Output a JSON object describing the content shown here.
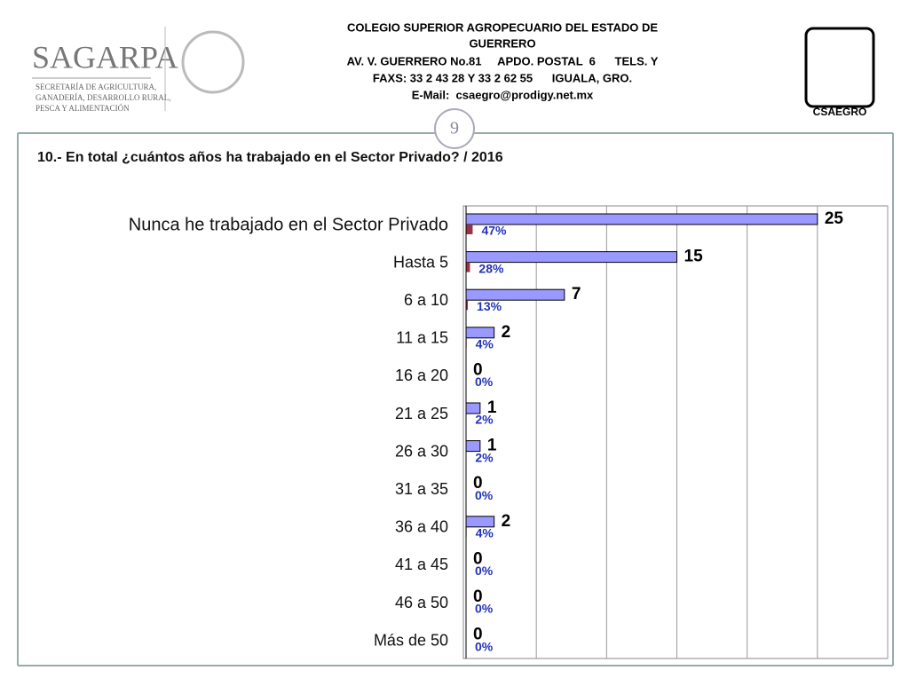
{
  "header": {
    "lines": [
      "COLEGIO SUPERIOR AGROPECUARIO DEL ESTADO DE",
      "GUERRERO",
      "AV. V. GUERRERO No.81     APDO. POSTAL  6      TELS. Y",
      "FAXS: 33 2 43 28 Y 33 2 62 55      IGUALA, GRO.",
      "E-Mail:  csaegro@prodigy.net.mx"
    ],
    "logo_left": {
      "name": "SAGARPA",
      "lines": [
        "SECRETARÍA DE AGRICULTURA,",
        "GANADERÍA, DESARROLLO RURAL,",
        "PESCA Y ALIMENTACIÓN"
      ]
    },
    "logo_right": "CSAEGRO",
    "page_number": "9"
  },
  "question": "10.- En total ¿cuántos años ha trabajado en el Sector Privado?   /   2016",
  "chart_data": {
    "type": "bar",
    "orientation": "horizontal",
    "categories": [
      "Nunca he trabajado en el Sector Privado",
      "Hasta 5",
      "6 a 10",
      "11 a 15",
      "16 a 20",
      "21 a 25",
      "26 a 30",
      "31 a 35",
      "36 a 40",
      "41 a 45",
      "46 a 50",
      "Más de 50"
    ],
    "series": [
      {
        "color": "#9999ff",
        "values": [
          25,
          15,
          7,
          2,
          0,
          1,
          1,
          0,
          2,
          0,
          0,
          0
        ]
      },
      {
        "color": "#993344",
        "values": [
          0.47,
          0.28,
          0.13,
          0.04,
          0,
          0.02,
          0.02,
          0,
          0.04,
          0,
          0,
          0
        ],
        "value_labels": [
          "47%",
          "28%",
          "13%",
          "4%",
          "0%",
          "2%",
          "2%",
          "0%",
          "4%",
          "0%",
          "0%",
          "0%"
        ]
      }
    ],
    "xlim": [
      0,
      30
    ],
    "xticks": [
      0,
      5,
      10,
      15,
      20,
      25,
      30
    ],
    "grid": true
  }
}
